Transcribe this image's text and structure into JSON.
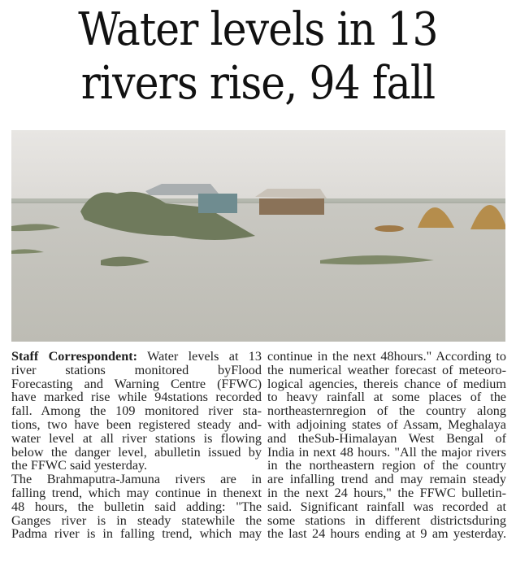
{
  "headline": {
    "line1": "Water levels in 13",
    "line2": "rivers rise, 94 fall"
  },
  "photo": {
    "subject": "flooded-village-photo"
  },
  "article": {
    "byline": "Staff Correspondent:",
    "col1": [
      " Water levels at 13",
      "river stations monitored byFlood",
      "Forecasting and Warning Centre (FFWC)",
      "have marked rise while 94stations recorded",
      "fall. Among the 109 monitored river sta-",
      "tions, two have been registered steady and-",
      "water level at all river stations is flowing",
      "below the danger level, abulletin issued by",
      "the FFWC said yesterday.",
      "The Brahmaputra-Jamuna rivers are in",
      "falling trend, which may continue in thenext",
      "48 hours, the bulletin said adding: \"The",
      "Ganges river is in steady statewhile the",
      "Padma river is in falling trend, which may"
    ],
    "col2": [
      "continue in the next 48hours.\" According to",
      "the numerical weather forecast of meteoro-",
      "logical agencies, thereis chance of medium",
      "to heavy rainfall at some places of the",
      "northeasternregion of the country along",
      "with adjoining states of Assam, Meghalaya",
      "and theSub-Himalayan West Bengal of",
      "India in next 48 hours. \"All the major rivers",
      "in the northeastern region of the country",
      "are infalling trend and may remain steady",
      "in the next 24 hours,\" the FFWC bulletin-",
      "said.  Significant rainfall was recorded at",
      "some stations in different districtsduring",
      "the last 24 hours ending at 9 am yesterday."
    ]
  }
}
